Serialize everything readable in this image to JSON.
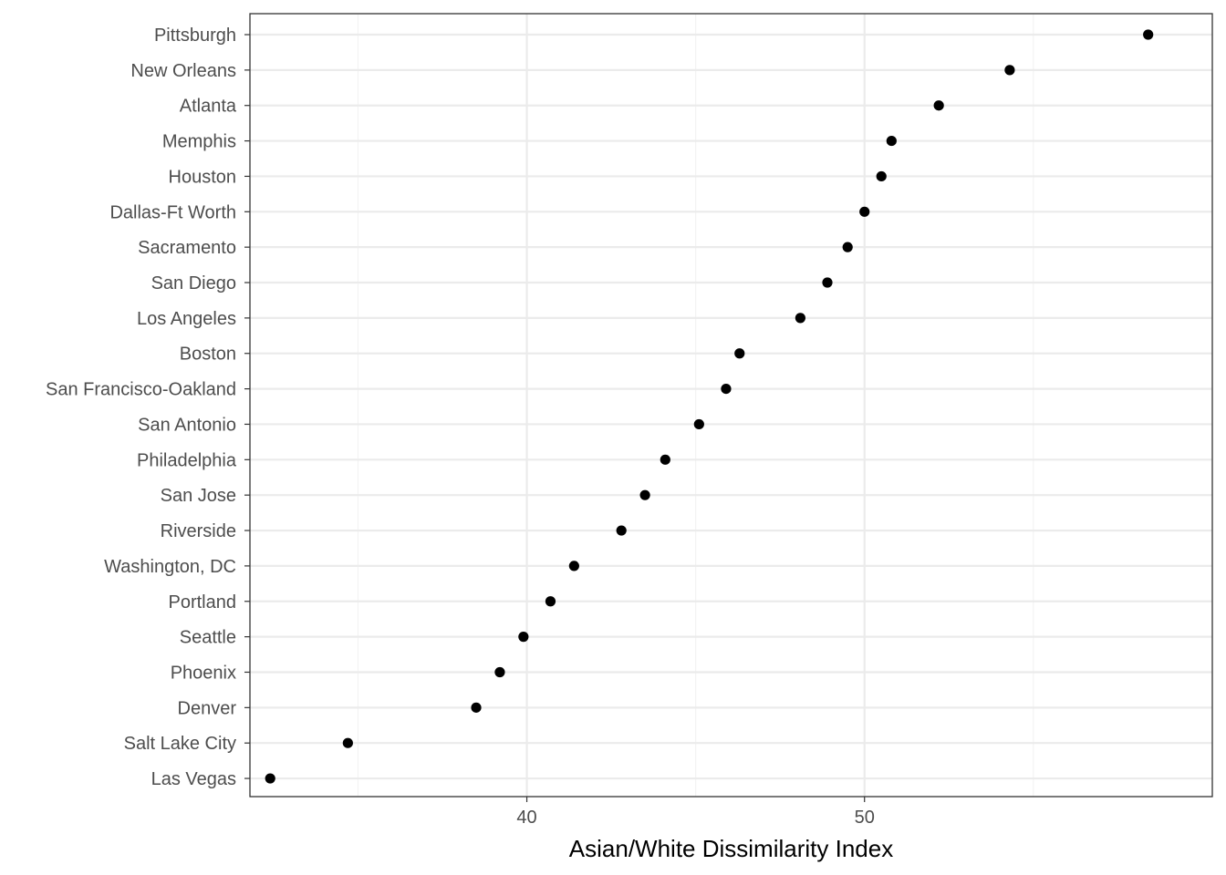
{
  "chart_data": {
    "type": "scatter",
    "xlabel": "Asian/White Dissimilarity Index",
    "ylabel": "",
    "xlim": [
      31.8,
      60.3
    ],
    "xticks": [
      40,
      50
    ],
    "grid": true,
    "categories": [
      "Pittsburgh",
      "New Orleans",
      "Atlanta",
      "Memphis",
      "Houston",
      "Dallas-Ft Worth",
      "Sacramento",
      "San Diego",
      "Los Angeles",
      "Boston",
      "San Francisco-Oakland",
      "San Antonio",
      "Philadelphia",
      "San Jose",
      "Riverside",
      "Washington, DC",
      "Portland",
      "Seattle",
      "Phoenix",
      "Denver",
      "Salt Lake City",
      "Las Vegas"
    ],
    "values": [
      58.4,
      54.3,
      52.2,
      50.8,
      50.5,
      50.0,
      49.5,
      48.9,
      48.1,
      46.3,
      45.9,
      45.1,
      44.1,
      43.5,
      42.8,
      41.4,
      40.7,
      39.9,
      39.2,
      38.5,
      34.7,
      32.4
    ]
  },
  "colors": {
    "point": "#000000",
    "grid_major": "#ebebeb",
    "grid_minor": "#f3f3f3",
    "panel_border": "#333333"
  }
}
